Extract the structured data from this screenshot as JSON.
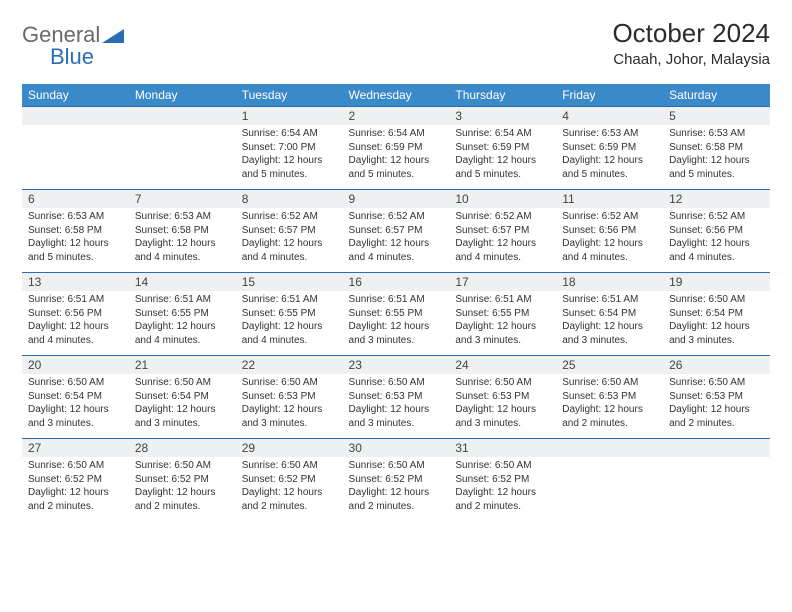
{
  "brand": {
    "part1": "General",
    "part2": "Blue"
  },
  "title": "October 2024",
  "subtitle": "Chaah, Johor, Malaysia",
  "colors": {
    "header_bg": "#3a89c9",
    "header_text": "#ffffff",
    "num_row_bg": "#eef0f1",
    "num_row_border": "#2a6db5",
    "body_text": "#333333",
    "title_text": "#2b2b2b",
    "logo_gray": "#6a6a6a",
    "logo_blue": "#2a6db5"
  },
  "dayNames": [
    "Sunday",
    "Monday",
    "Tuesday",
    "Wednesday",
    "Thursday",
    "Friday",
    "Saturday"
  ],
  "weeks": [
    [
      null,
      null,
      {
        "n": "1",
        "sr": "Sunrise: 6:54 AM",
        "ss": "Sunset: 7:00 PM",
        "d1": "Daylight: 12 hours",
        "d2": "and 5 minutes."
      },
      {
        "n": "2",
        "sr": "Sunrise: 6:54 AM",
        "ss": "Sunset: 6:59 PM",
        "d1": "Daylight: 12 hours",
        "d2": "and 5 minutes."
      },
      {
        "n": "3",
        "sr": "Sunrise: 6:54 AM",
        "ss": "Sunset: 6:59 PM",
        "d1": "Daylight: 12 hours",
        "d2": "and 5 minutes."
      },
      {
        "n": "4",
        "sr": "Sunrise: 6:53 AM",
        "ss": "Sunset: 6:59 PM",
        "d1": "Daylight: 12 hours",
        "d2": "and 5 minutes."
      },
      {
        "n": "5",
        "sr": "Sunrise: 6:53 AM",
        "ss": "Sunset: 6:58 PM",
        "d1": "Daylight: 12 hours",
        "d2": "and 5 minutes."
      }
    ],
    [
      {
        "n": "6",
        "sr": "Sunrise: 6:53 AM",
        "ss": "Sunset: 6:58 PM",
        "d1": "Daylight: 12 hours",
        "d2": "and 5 minutes."
      },
      {
        "n": "7",
        "sr": "Sunrise: 6:53 AM",
        "ss": "Sunset: 6:58 PM",
        "d1": "Daylight: 12 hours",
        "d2": "and 4 minutes."
      },
      {
        "n": "8",
        "sr": "Sunrise: 6:52 AM",
        "ss": "Sunset: 6:57 PM",
        "d1": "Daylight: 12 hours",
        "d2": "and 4 minutes."
      },
      {
        "n": "9",
        "sr": "Sunrise: 6:52 AM",
        "ss": "Sunset: 6:57 PM",
        "d1": "Daylight: 12 hours",
        "d2": "and 4 minutes."
      },
      {
        "n": "10",
        "sr": "Sunrise: 6:52 AM",
        "ss": "Sunset: 6:57 PM",
        "d1": "Daylight: 12 hours",
        "d2": "and 4 minutes."
      },
      {
        "n": "11",
        "sr": "Sunrise: 6:52 AM",
        "ss": "Sunset: 6:56 PM",
        "d1": "Daylight: 12 hours",
        "d2": "and 4 minutes."
      },
      {
        "n": "12",
        "sr": "Sunrise: 6:52 AM",
        "ss": "Sunset: 6:56 PM",
        "d1": "Daylight: 12 hours",
        "d2": "and 4 minutes."
      }
    ],
    [
      {
        "n": "13",
        "sr": "Sunrise: 6:51 AM",
        "ss": "Sunset: 6:56 PM",
        "d1": "Daylight: 12 hours",
        "d2": "and 4 minutes."
      },
      {
        "n": "14",
        "sr": "Sunrise: 6:51 AM",
        "ss": "Sunset: 6:55 PM",
        "d1": "Daylight: 12 hours",
        "d2": "and 4 minutes."
      },
      {
        "n": "15",
        "sr": "Sunrise: 6:51 AM",
        "ss": "Sunset: 6:55 PM",
        "d1": "Daylight: 12 hours",
        "d2": "and 4 minutes."
      },
      {
        "n": "16",
        "sr": "Sunrise: 6:51 AM",
        "ss": "Sunset: 6:55 PM",
        "d1": "Daylight: 12 hours",
        "d2": "and 3 minutes."
      },
      {
        "n": "17",
        "sr": "Sunrise: 6:51 AM",
        "ss": "Sunset: 6:55 PM",
        "d1": "Daylight: 12 hours",
        "d2": "and 3 minutes."
      },
      {
        "n": "18",
        "sr": "Sunrise: 6:51 AM",
        "ss": "Sunset: 6:54 PM",
        "d1": "Daylight: 12 hours",
        "d2": "and 3 minutes."
      },
      {
        "n": "19",
        "sr": "Sunrise: 6:50 AM",
        "ss": "Sunset: 6:54 PM",
        "d1": "Daylight: 12 hours",
        "d2": "and 3 minutes."
      }
    ],
    [
      {
        "n": "20",
        "sr": "Sunrise: 6:50 AM",
        "ss": "Sunset: 6:54 PM",
        "d1": "Daylight: 12 hours",
        "d2": "and 3 minutes."
      },
      {
        "n": "21",
        "sr": "Sunrise: 6:50 AM",
        "ss": "Sunset: 6:54 PM",
        "d1": "Daylight: 12 hours",
        "d2": "and 3 minutes."
      },
      {
        "n": "22",
        "sr": "Sunrise: 6:50 AM",
        "ss": "Sunset: 6:53 PM",
        "d1": "Daylight: 12 hours",
        "d2": "and 3 minutes."
      },
      {
        "n": "23",
        "sr": "Sunrise: 6:50 AM",
        "ss": "Sunset: 6:53 PM",
        "d1": "Daylight: 12 hours",
        "d2": "and 3 minutes."
      },
      {
        "n": "24",
        "sr": "Sunrise: 6:50 AM",
        "ss": "Sunset: 6:53 PM",
        "d1": "Daylight: 12 hours",
        "d2": "and 3 minutes."
      },
      {
        "n": "25",
        "sr": "Sunrise: 6:50 AM",
        "ss": "Sunset: 6:53 PM",
        "d1": "Daylight: 12 hours",
        "d2": "and 2 minutes."
      },
      {
        "n": "26",
        "sr": "Sunrise: 6:50 AM",
        "ss": "Sunset: 6:53 PM",
        "d1": "Daylight: 12 hours",
        "d2": "and 2 minutes."
      }
    ],
    [
      {
        "n": "27",
        "sr": "Sunrise: 6:50 AM",
        "ss": "Sunset: 6:52 PM",
        "d1": "Daylight: 12 hours",
        "d2": "and 2 minutes."
      },
      {
        "n": "28",
        "sr": "Sunrise: 6:50 AM",
        "ss": "Sunset: 6:52 PM",
        "d1": "Daylight: 12 hours",
        "d2": "and 2 minutes."
      },
      {
        "n": "29",
        "sr": "Sunrise: 6:50 AM",
        "ss": "Sunset: 6:52 PM",
        "d1": "Daylight: 12 hours",
        "d2": "and 2 minutes."
      },
      {
        "n": "30",
        "sr": "Sunrise: 6:50 AM",
        "ss": "Sunset: 6:52 PM",
        "d1": "Daylight: 12 hours",
        "d2": "and 2 minutes."
      },
      {
        "n": "31",
        "sr": "Sunrise: 6:50 AM",
        "ss": "Sunset: 6:52 PM",
        "d1": "Daylight: 12 hours",
        "d2": "and 2 minutes."
      },
      null,
      null
    ]
  ]
}
